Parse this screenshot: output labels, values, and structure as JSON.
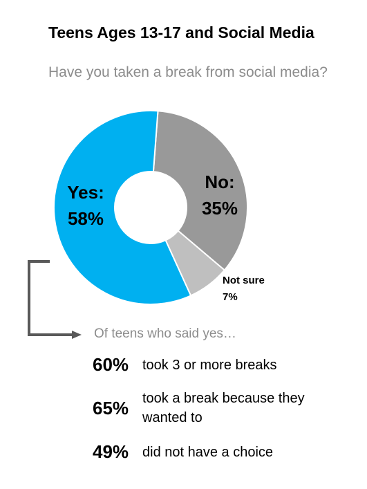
{
  "chart_data": {
    "type": "pie",
    "title": "Teens Ages 13-17 and Social Media",
    "subtitle": "Have you taken a break from social media?",
    "slices": [
      {
        "name": "No",
        "label_line1": "No:",
        "label_line2": "35%",
        "value": 35,
        "color": "#999999"
      },
      {
        "name": "Not sure",
        "label_line1": "Not sure",
        "label_line2": "7%",
        "value": 7,
        "color": "#bfbfbf"
      },
      {
        "name": "Yes",
        "label_line1": "Yes:",
        "label_line2": "58%",
        "value": 58,
        "color": "#00b0f0"
      }
    ]
  },
  "followup": {
    "intro": "Of teens who said yes…",
    "stats": [
      {
        "pct": "60%",
        "text": "took 3 or more breaks"
      },
      {
        "pct": "65%",
        "text": "took a break because they wanted to"
      },
      {
        "pct": "49%",
        "text": "did not have a choice"
      }
    ]
  }
}
